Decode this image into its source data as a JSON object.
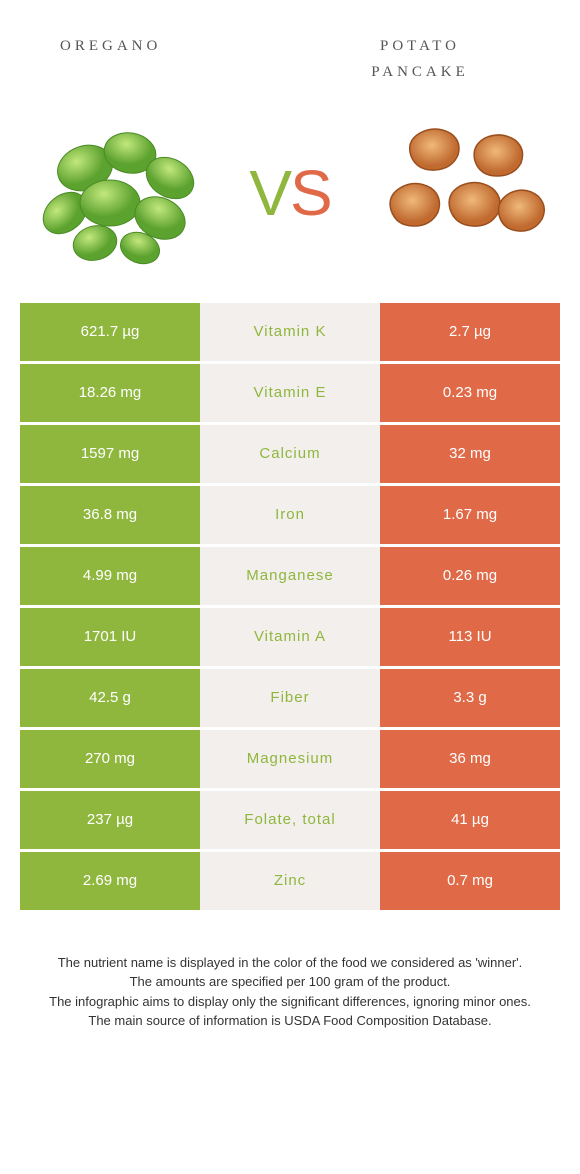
{
  "colors": {
    "green": "#8fb73e",
    "orange": "#e06a48",
    "mid_bg": "#f3efec",
    "leaf_light": "#9ed454",
    "leaf_dark": "#5ca22f",
    "pancake_fill": "#d88b4a",
    "pancake_edge": "#b56428"
  },
  "header": {
    "left": "oregano",
    "right_l1": "potato",
    "right_l2": "pancake"
  },
  "vs": {
    "v": "V",
    "s": "S"
  },
  "nutrients": [
    {
      "left": "621.7 µg",
      "name": "Vitamin K",
      "right": "2.7 µg",
      "winner": "left"
    },
    {
      "left": "18.26 mg",
      "name": "Vitamin E",
      "right": "0.23 mg",
      "winner": "left"
    },
    {
      "left": "1597 mg",
      "name": "Calcium",
      "right": "32 mg",
      "winner": "left"
    },
    {
      "left": "36.8 mg",
      "name": "Iron",
      "right": "1.67 mg",
      "winner": "left"
    },
    {
      "left": "4.99 mg",
      "name": "Manganese",
      "right": "0.26 mg",
      "winner": "left"
    },
    {
      "left": "1701 IU",
      "name": "Vitamin A",
      "right": "113 IU",
      "winner": "left"
    },
    {
      "left": "42.5 g",
      "name": "Fiber",
      "right": "3.3 g",
      "winner": "left"
    },
    {
      "left": "270 mg",
      "name": "Magnesium",
      "right": "36 mg",
      "winner": "left"
    },
    {
      "left": "237 µg",
      "name": "Folate, total",
      "right": "41 µg",
      "winner": "left"
    },
    {
      "left": "2.69 mg",
      "name": "Zinc",
      "right": "0.7 mg",
      "winner": "left"
    }
  ],
  "footnotes": [
    "The nutrient name is displayed in the color of the food we considered as 'winner'.",
    "The amounts are specified per 100 gram of the product.",
    "The infographic aims to display only the significant differences, ignoring minor ones.",
    "The main source of information is USDA Food Composition Database."
  ]
}
